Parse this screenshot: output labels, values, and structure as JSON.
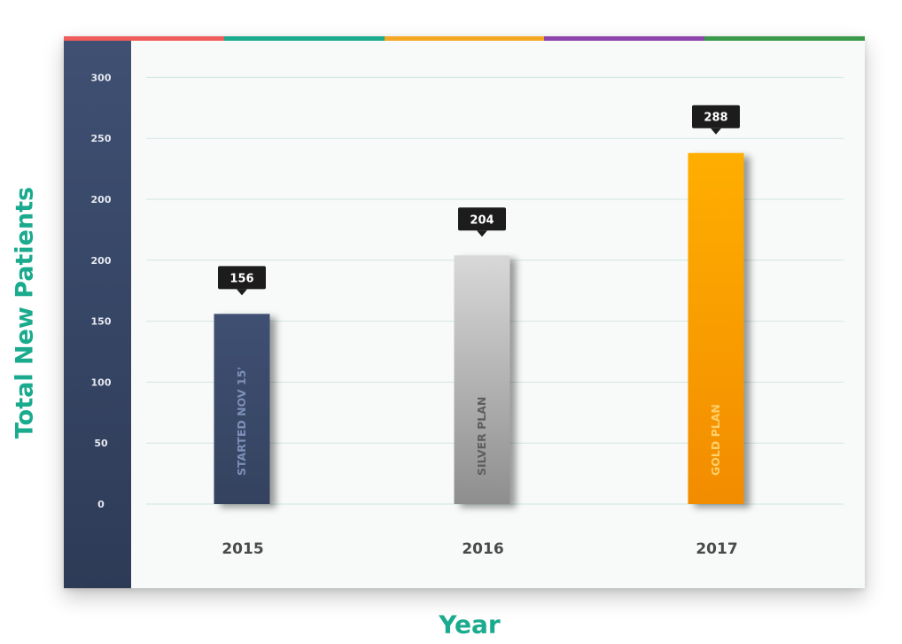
{
  "colors": {
    "top_stripe": [
      "#f05b5b",
      "#1aaa8e",
      "#f5a623",
      "#8e44ad",
      "#3a9a4a"
    ],
    "axis_title": "#1aaa8e",
    "axis_panel": "#34425f"
  },
  "chart_data": {
    "type": "bar",
    "title": "",
    "ylabel": "Total New Patients",
    "xlabel": "Year",
    "categories": [
      "2015",
      "2016",
      "2017"
    ],
    "values": [
      156,
      204,
      288
    ],
    "bar_labels": [
      "STARTED NOV 15'",
      "SILVER PLAN",
      "GOLD PLAN"
    ],
    "bar_colors": [
      {
        "top": "#3f5073",
        "bottom": "#34425f",
        "label": "#7d8fb8"
      },
      {
        "top": "#d8d8d8",
        "bottom": "#8e8e8e",
        "label": "#5e5e5e"
      },
      {
        "top": "#ffae00",
        "bottom": "#f28c00",
        "label": "#ffcf6a"
      }
    ],
    "y_tick_labels": [
      "0",
      "50",
      "100",
      "150",
      "200",
      "200",
      "250",
      "300"
    ],
    "ylim": [
      0,
      350
    ],
    "grid": true,
    "legend": "none"
  }
}
